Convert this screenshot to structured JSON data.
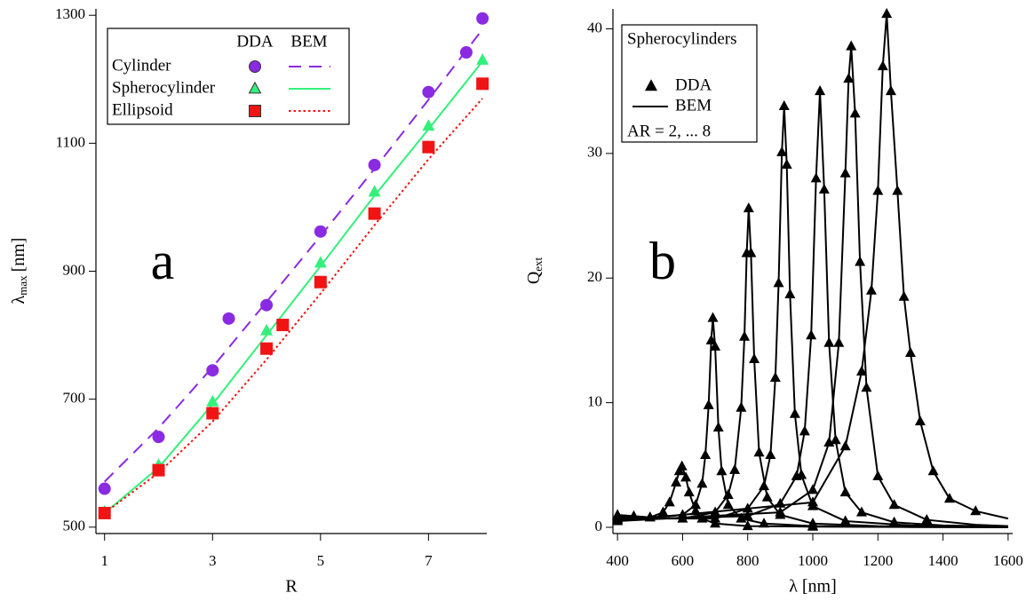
{
  "chart_data": [
    {
      "type": "scatter",
      "annotation": "a",
      "xlabel": "R",
      "ylabel": {
        "symbol": "λ",
        "sub": "max",
        "unit": "[nm]"
      },
      "xlim": [
        0.84,
        8.08
      ],
      "ylim": [
        490,
        1310
      ],
      "xticks": [
        1,
        3,
        5,
        7
      ],
      "yticks": [
        500,
        700,
        900,
        1100,
        1300
      ],
      "legend": "top-left",
      "legend_headers": [
        "DDA",
        "BEM"
      ],
      "series": [
        {
          "name": "Cylinder",
          "color": "#8a2be2",
          "marker": "circle",
          "dash": "dashed",
          "dda_x": [
            1,
            2,
            3,
            3.3,
            4,
            5,
            6,
            7,
            7.7,
            8
          ],
          "dda": [
            560,
            641,
            745,
            826,
            847,
            962,
            1066,
            1180,
            1242,
            1295
          ],
          "bem_x": [
            1,
            2,
            3,
            4,
            5,
            6,
            7,
            8
          ],
          "bem": [
            571,
            655,
            750,
            852,
            955,
            1060,
            1168,
            1278
          ]
        },
        {
          "name": "Spherocylinder",
          "color": "#33f07a",
          "marker": "triangle",
          "dash": "solid",
          "dda_x": [
            1,
            2,
            3,
            4,
            5,
            6,
            7,
            8
          ],
          "dda": [
            524,
            597,
            696,
            807,
            913,
            1024,
            1127,
            1230
          ],
          "bem_x": [
            1,
            2,
            3,
            4,
            5,
            6,
            7,
            8
          ],
          "bem": [
            522,
            593,
            692,
            800,
            908,
            1018,
            1122,
            1228
          ]
        },
        {
          "name": "Ellipsoid",
          "color": "#f01414",
          "marker": "square",
          "dash": "dotted",
          "dda_x": [
            1,
            2,
            3,
            4,
            4.3,
            5,
            6,
            7,
            8
          ],
          "dda": [
            522,
            589,
            678,
            779,
            816,
            883,
            990,
            1094,
            1193
          ],
          "bem_x": [
            1,
            2,
            3,
            4,
            5,
            6,
            7,
            8
          ],
          "bem": [
            522,
            585,
            665,
            762,
            865,
            972,
            1075,
            1170
          ]
        }
      ]
    },
    {
      "type": "line",
      "annotation": "b",
      "xlabel": "λ [nm]",
      "ylabel": {
        "symbol": "Q",
        "sub": "ext"
      },
      "xlim": [
        386,
        1614
      ],
      "ylim": [
        -0.5,
        41.6
      ],
      "xticks": [
        400,
        600,
        800,
        1000,
        1200,
        1400,
        1600
      ],
      "yticks": [
        0,
        10,
        20,
        30,
        40
      ],
      "legend": "top-left",
      "legend_title": "Spherocylinders",
      "legend_entries": [
        "DDA",
        "BEM"
      ],
      "legend_note": "AR = 2, ... 8",
      "color": "#000000",
      "series": [
        {
          "dash": "solid",
          "marker": "triangle",
          "bem_x": [
            400,
            450,
            500,
            540,
            560,
            580,
            590,
            598,
            610,
            620,
            640,
            660,
            700,
            800,
            1000,
            1300,
            1600
          ],
          "bem": [
            1.0,
            0.9,
            0.8,
            1.2,
            2.0,
            3.6,
            4.5,
            4.9,
            4.0,
            2.8,
            1.3,
            0.7,
            0.3,
            0.1,
            0.05,
            0.02,
            0.01
          ],
          "dda_x": [
            400,
            450,
            500,
            540,
            560,
            580,
            590,
            598,
            610,
            620,
            640,
            660,
            700,
            800,
            1000
          ],
          "dda": [
            1.0,
            0.9,
            0.8,
            1.2,
            2.0,
            3.6,
            4.5,
            4.9,
            4.0,
            2.8,
            1.3,
            0.7,
            0.3,
            0.1,
            0.05
          ]
        },
        {
          "dash": "solid",
          "marker": "triangle",
          "bem_x": [
            400,
            500,
            600,
            640,
            660,
            670,
            680,
            688,
            693,
            700,
            710,
            720,
            740,
            780,
            850,
            1000,
            1300,
            1600
          ],
          "bem": [
            0.9,
            0.8,
            1.0,
            1.8,
            3.5,
            5.8,
            9.8,
            15.0,
            16.8,
            14.5,
            8.0,
            4.5,
            1.8,
            0.7,
            0.3,
            0.1,
            0.03,
            0.01
          ],
          "dda_x": [
            400,
            500,
            600,
            640,
            660,
            670,
            680,
            688,
            693,
            700,
            710,
            720,
            740,
            780,
            850,
            1000
          ],
          "dda": [
            0.9,
            0.8,
            1.0,
            1.8,
            3.5,
            5.8,
            9.8,
            15.0,
            16.8,
            14.5,
            8.0,
            4.5,
            1.8,
            0.7,
            0.3,
            0.1
          ]
        },
        {
          "dash": "solid",
          "marker": "triangle",
          "bem_x": [
            400,
            600,
            700,
            740,
            760,
            780,
            790,
            797,
            803,
            810,
            820,
            835,
            860,
            900,
            1000,
            1200,
            1600
          ],
          "bem": [
            0.8,
            0.7,
            1.2,
            2.6,
            4.6,
            9.6,
            15.3,
            22.0,
            25.6,
            22.0,
            13.5,
            6.0,
            2.4,
            1.0,
            0.3,
            0.1,
            0.02
          ],
          "dda_x": [
            400,
            600,
            700,
            740,
            760,
            780,
            790,
            797,
            803,
            810,
            820,
            835,
            860,
            900,
            1000
          ],
          "dda": [
            0.8,
            0.7,
            1.2,
            2.6,
            4.6,
            9.6,
            15.3,
            22.0,
            25.6,
            22.0,
            13.5,
            6.0,
            2.4,
            1.0,
            0.3
          ]
        },
        {
          "dash": "solid",
          "marker": "triangle",
          "bem_x": [
            400,
            700,
            800,
            850,
            870,
            885,
            895,
            905,
            912,
            920,
            930,
            945,
            965,
            1000,
            1100,
            1300,
            1600
          ],
          "bem": [
            0.7,
            0.7,
            1.5,
            3.3,
            5.8,
            12.0,
            19.6,
            30.1,
            33.8,
            29.1,
            18.7,
            9.1,
            4.2,
            1.7,
            0.5,
            0.15,
            0.05
          ],
          "dda_x": [
            400,
            700,
            800,
            850,
            870,
            885,
            895,
            905,
            912,
            920,
            930,
            945,
            965,
            1000,
            1100
          ],
          "dda": [
            0.7,
            0.7,
            1.5,
            3.3,
            5.8,
            12.0,
            19.6,
            30.1,
            33.8,
            29.1,
            18.7,
            9.1,
            4.2,
            1.7,
            0.5
          ]
        },
        {
          "dash": "solid",
          "marker": "triangle",
          "bem_x": [
            400,
            800,
            900,
            950,
            975,
            995,
            1010,
            1022,
            1035,
            1050,
            1070,
            1100,
            1150,
            1250,
            1400,
            1600
          ],
          "bem": [
            0.6,
            0.9,
            1.9,
            4.1,
            7.7,
            15.4,
            28.0,
            35.0,
            27.1,
            14.8,
            7.0,
            2.8,
            1.2,
            0.4,
            0.15,
            0.06
          ],
          "dda_x": [
            400,
            800,
            900,
            950,
            975,
            995,
            1010,
            1022,
            1035,
            1050,
            1070,
            1100,
            1150,
            1250
          ],
          "dda": [
            0.6,
            0.9,
            1.9,
            4.1,
            7.7,
            15.4,
            28.0,
            35.0,
            27.1,
            14.8,
            7.0,
            2.8,
            1.2,
            0.4
          ]
        },
        {
          "dash": "solid",
          "marker": "triangle",
          "bem_x": [
            400,
            900,
            1000,
            1050,
            1080,
            1100,
            1110,
            1118,
            1130,
            1145,
            1165,
            1200,
            1250,
            1350,
            1500,
            1600
          ],
          "bem": [
            0.5,
            1.2,
            3.0,
            6.8,
            14.8,
            28.4,
            36.0,
            38.6,
            33.2,
            21.3,
            11.2,
            4.1,
            1.8,
            0.6,
            0.2,
            0.1
          ],
          "dda_x": [
            400,
            900,
            1000,
            1050,
            1080,
            1100,
            1110,
            1118,
            1130,
            1145,
            1165,
            1200,
            1250,
            1350
          ],
          "dda": [
            0.5,
            1.2,
            3.0,
            6.8,
            14.8,
            28.4,
            36.0,
            38.6,
            33.2,
            21.3,
            11.2,
            4.1,
            1.8,
            0.6
          ]
        },
        {
          "dash": "solid",
          "marker": "triangle",
          "bem_x": [
            400,
            1000,
            1100,
            1150,
            1180,
            1200,
            1215,
            1227,
            1240,
            1260,
            1280,
            1300,
            1330,
            1370,
            1420,
            1500,
            1600
          ],
          "bem": [
            0.5,
            2.0,
            6.5,
            12.5,
            19.0,
            27.0,
            37.0,
            41.2,
            35.0,
            27.0,
            18.5,
            14.0,
            8.5,
            4.5,
            2.3,
            1.3,
            0.7
          ],
          "dda_x": [
            400,
            1000,
            1100,
            1150,
            1180,
            1200,
            1215,
            1227,
            1240,
            1260,
            1280,
            1300,
            1330,
            1370,
            1420,
            1500
          ],
          "dda": [
            0.5,
            2.0,
            6.5,
            12.5,
            19.0,
            27.0,
            37.0,
            41.2,
            35.0,
            27.0,
            18.5,
            14.0,
            8.5,
            4.5,
            2.3,
            1.3
          ]
        }
      ]
    }
  ]
}
